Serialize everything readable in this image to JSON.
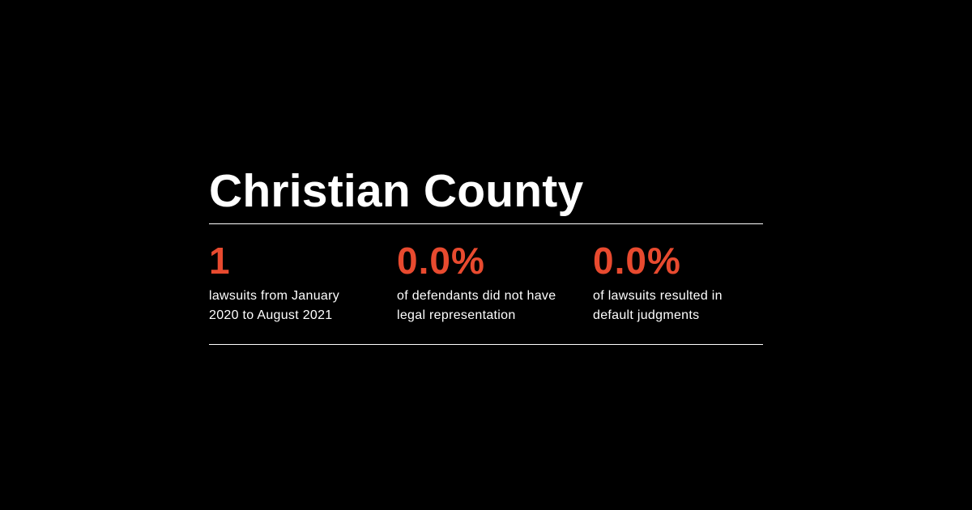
{
  "colors": {
    "background": "#000000",
    "text": "#ffffff",
    "accent": "#e84a2f"
  },
  "title": "Christian County",
  "stats": [
    {
      "value": "1",
      "label_line1": "lawsuits from January",
      "label_line2": "2020 to August 2021"
    },
    {
      "value": "0.0%",
      "label_line1": "of defendants did not have",
      "label_line2": "legal representation"
    },
    {
      "value": "0.0%",
      "label_line1": "of lawsuits resulted in",
      "label_line2": "default judgments"
    }
  ]
}
